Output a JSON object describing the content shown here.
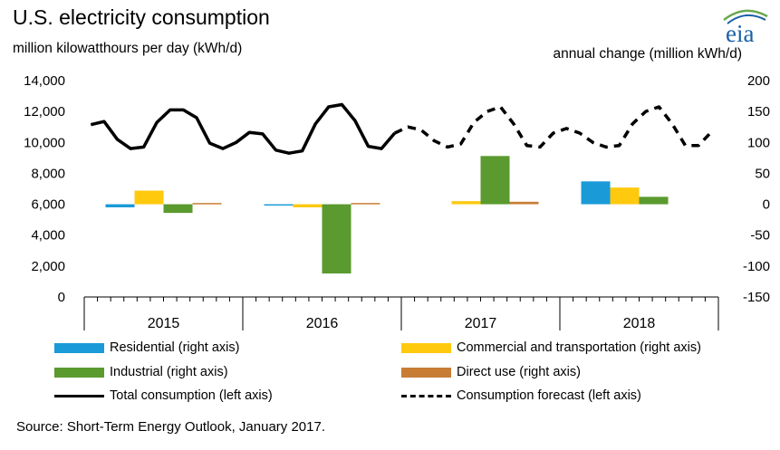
{
  "header": {
    "title": "U.S. electricity consumption",
    "subtitle_left": "million kilowatthours per day (kWh/d)",
    "subtitle_right": "annual change (million kWh/d)",
    "logo_text": "eia"
  },
  "source": "Source: Short-Term Energy Outlook, January 2017.",
  "colors": {
    "residential": "#1a9bd7",
    "commercial": "#ffc90e",
    "industrial": "#5a9a2e",
    "direct": "#c87d35",
    "total": "#000000",
    "logo_blue": "#1a5fa8",
    "logo_green": "#6aa84f"
  },
  "legend": [
    {
      "key": "residential",
      "label": "Residential (right axis)",
      "style": "bar"
    },
    {
      "key": "commercial",
      "label": "Commercial and transportation (right axis)",
      "style": "bar"
    },
    {
      "key": "industrial",
      "label": "Industrial (right axis)",
      "style": "bar"
    },
    {
      "key": "direct",
      "label": "Direct use (right axis)",
      "style": "bar"
    },
    {
      "key": "total",
      "label": "Total consumption (left axis)",
      "style": "solid"
    },
    {
      "key": "forecast",
      "label": "Consumption forecast (left axis)",
      "style": "dashed"
    }
  ],
  "chart_data": {
    "type": "bar+line",
    "years": [
      "2015",
      "2016",
      "2017",
      "2018"
    ],
    "left_axis": {
      "label": "million kilowatthours per day (kWh/d)",
      "ylim": [
        0,
        14000
      ],
      "ticks": [
        "0",
        "2,000",
        "4,000",
        "6,000",
        "8,000",
        "10,000",
        "12,000",
        "14,000"
      ]
    },
    "right_axis": {
      "label": "annual change (million kWh/d)",
      "ylim": [
        -150,
        200
      ],
      "ticks": [
        "-150",
        "-100",
        "-50",
        "0",
        "50",
        "100",
        "150",
        "200"
      ]
    },
    "bar_series": [
      {
        "name": "Residential (right axis)",
        "key": "residential",
        "values": [
          -5,
          -0.5,
          0,
          37
        ]
      },
      {
        "name": "Commercial and transportation (right axis)",
        "key": "commercial",
        "values": [
          22,
          -5,
          5,
          27
        ]
      },
      {
        "name": "Industrial (right axis)",
        "key": "industrial",
        "values": [
          -14,
          -112,
          78,
          12
        ]
      },
      {
        "name": "Direct use (right axis)",
        "key": "direct",
        "values": [
          2,
          2,
          4,
          0
        ]
      }
    ],
    "total_consumption": {
      "name": "Total consumption (left axis)",
      "axis": "left",
      "values": [
        11150,
        11350,
        10200,
        9600,
        9700,
        11300,
        12100,
        12100,
        11600,
        9950,
        9600,
        10000,
        10650,
        10550,
        9500,
        9300,
        9450,
        11200,
        12300,
        12450,
        11400,
        9750,
        9600,
        10600
      ]
    },
    "consumption_forecast": {
      "name": "Consumption forecast (left axis)",
      "axis": "left",
      "values": [
        10600,
        11000,
        10800,
        10100,
        9700,
        9900,
        11300,
        12000,
        12300,
        11200,
        9800,
        9700,
        10600,
        10900,
        10600,
        10000,
        9700,
        9800,
        11200,
        12000,
        12300,
        11200,
        9800,
        9800,
        10700
      ]
    }
  }
}
